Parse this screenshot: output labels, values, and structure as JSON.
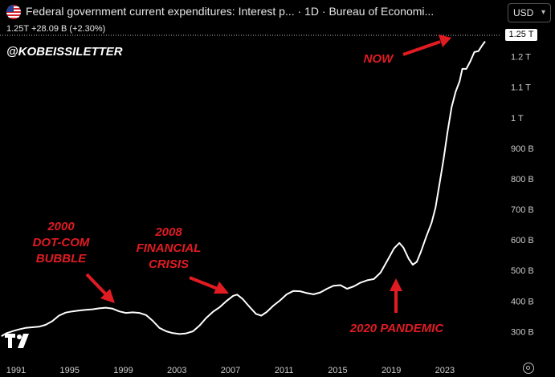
{
  "header": {
    "title": "Federal government current expenditures: Interest p...",
    "interval": "1D",
    "source": "Bureau of Economi...",
    "currency": "USD",
    "last_value": "1.25T",
    "change": "+28.09 B",
    "change_pct": "(+2.30%)"
  },
  "watermark": "@KOBEISSILETTER",
  "price_badge": "1.25 T",
  "annotations": {
    "dotcom": "2000\nDOT-COM\nBUBBLE",
    "financial": "2008\nFINANCIAL\nCRISIS",
    "pandemic": "2020 PANDEMIC",
    "now": "NOW"
  },
  "colors": {
    "background": "#000000",
    "line": "#ffffff",
    "annotation": "#e11b22",
    "axis_text": "#cccccc"
  },
  "icons": [
    "us-flag-icon",
    "chevron-down-icon",
    "tradingview-logo-icon",
    "settings-icon"
  ],
  "chart_data": {
    "type": "line",
    "x_ticks": [
      "1991",
      "1995",
      "1999",
      "2003",
      "2007",
      "2011",
      "2015",
      "2019",
      "2023"
    ],
    "y_ticks": [
      "300 B",
      "400 B",
      "500 B",
      "600 B",
      "700 B",
      "800 B",
      "900 B",
      "1 T",
      "1.1 T",
      "1.2 T"
    ],
    "y_tick_values": [
      300,
      400,
      500,
      600,
      700,
      800,
      900,
      1000,
      1100,
      1200
    ],
    "y_unit": "billions USD",
    "ylim": [
      230,
      1270
    ],
    "xlim": [
      1989.8,
      2027.2
    ],
    "grid": false,
    "series": [
      {
        "x": [
          1989.9,
          1990.3,
          1990.8,
          1991.2,
          1991.7,
          1992.2,
          1992.7,
          1993.2,
          1993.7,
          1994.2,
          1994.7,
          1995.2,
          1995.7,
          1996.2,
          1996.7,
          1997.2,
          1997.7,
          1998.2,
          1998.7,
          1999.2,
          1999.7,
          2000.2,
          2000.7,
          2001.2,
          2001.7,
          2002.2,
          2002.7,
          2003.2,
          2003.7,
          2004.2,
          2004.7,
          2005.2,
          2005.7,
          2006.2,
          2006.7,
          2007.2,
          2007.5,
          2007.9,
          2008.4,
          2008.9,
          2009.3,
          2009.7,
          2010.2,
          2010.7,
          2011.2,
          2011.7,
          2012.2,
          2012.7,
          2013.2,
          2013.7,
          2014.2,
          2014.7,
          2015.2,
          2015.7,
          2016.2,
          2016.7,
          2017.2,
          2017.7,
          2018.2,
          2018.7,
          2019.2,
          2019.6,
          2019.9,
          2020.3,
          2020.6,
          2020.9,
          2021.2,
          2021.6,
          2022.0,
          2022.3,
          2022.6,
          2022.9,
          2023.2,
          2023.5,
          2023.8,
          2024.1,
          2024.3,
          2024.6,
          2024.9,
          2025.2,
          2025.5,
          2025.8,
          2026.0
        ],
        "y": [
          285,
          295,
          302,
          307,
          312,
          314,
          316,
          322,
          334,
          352,
          362,
          366,
          369,
          371,
          373,
          376,
          378,
          375,
          366,
          361,
          363,
          361,
          354,
          335,
          312,
          301,
          295,
          292,
          294,
          301,
          320,
          345,
          365,
          380,
          400,
          417,
          421,
          407,
          382,
          358,
          352,
          364,
          385,
          402,
          422,
          433,
          432,
          426,
          422,
          428,
          440,
          450,
          452,
          440,
          448,
          460,
          468,
          472,
          493,
          532,
          572,
          590,
          575,
          538,
          519,
          528,
          560,
          610,
          655,
          705,
          785,
          865,
          955,
          1035,
          1085,
          1120,
          1160,
          1160,
          1185,
          1215,
          1218,
          1238,
          1250
        ]
      }
    ]
  }
}
